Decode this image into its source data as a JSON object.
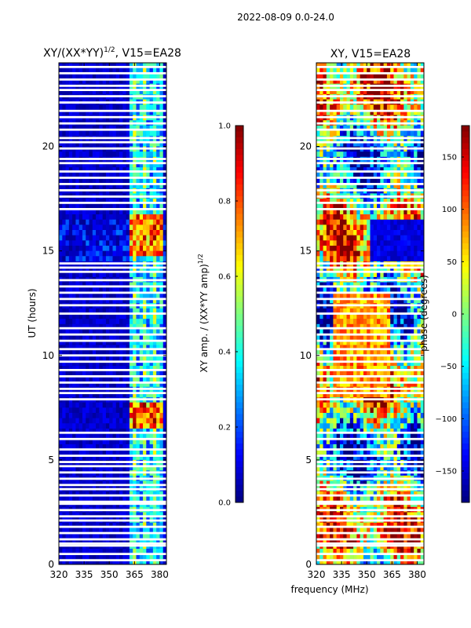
{
  "figure_title": "2022-08-09 0.0-24.0",
  "xlabel": "frequency (MHz)",
  "colors": {
    "jet": [
      "#00007f",
      "#0000ff",
      "#007fff",
      "#00ffff",
      "#7fff7f",
      "#ffff00",
      "#ff7f00",
      "#ff0000",
      "#7f0000"
    ],
    "background": "#ffffff"
  },
  "chart_data": [
    {
      "type": "heatmap",
      "title_main": "XY/(XX*YY)",
      "title_exp": "1/2",
      "title_rest": ", V15=EA28",
      "ylabel": "UT (hours)",
      "xlim": [
        320,
        384
      ],
      "ylim": [
        0,
        24
      ],
      "xticks": [
        320,
        335,
        350,
        365,
        380
      ],
      "yticks": [
        0,
        5,
        10,
        15,
        20
      ],
      "band_of_activity_MHz": [
        362,
        381
      ],
      "hot_intervals_hours": [
        [
          6.5,
          7.7
        ],
        [
          14.7,
          16.8
        ]
      ],
      "colorbar": {
        "label": "XY amp. / (XX*YY amp)",
        "label_exp": "1/2",
        "range": [
          0.0,
          1.0
        ],
        "ticks": [
          "0.0",
          "0.2",
          "0.4",
          "0.6",
          "0.8",
          "1.0"
        ],
        "tick_values": [
          0.0,
          0.2,
          0.4,
          0.6,
          0.8,
          1.0
        ]
      }
    },
    {
      "type": "heatmap",
      "title": "XY, V15=EA28",
      "xlim": [
        320,
        384
      ],
      "ylim": [
        0,
        24
      ],
      "xticks": [
        320,
        335,
        350,
        365,
        380
      ],
      "yticks": [
        0,
        5,
        10,
        15,
        20
      ],
      "colorbar": {
        "label": "phase (degrees)",
        "range": [
          -180,
          180
        ],
        "ticks": [
          "−150",
          "−100",
          "−50",
          "0",
          "50",
          "100",
          "150"
        ],
        "tick_values": [
          -150,
          -100,
          -50,
          0,
          50,
          100,
          150
        ]
      }
    }
  ],
  "flagged_hours": [
    0.2,
    0.5,
    0.9,
    1.0,
    1.2,
    1.5,
    1.8,
    2.1,
    2.3,
    2.6,
    2.9,
    3.0,
    3.3,
    3.6,
    3.8,
    4.1,
    4.4,
    4.7,
    4.9,
    5.2,
    5.5,
    6.0,
    6.3,
    7.9,
    8.2,
    8.4,
    8.7,
    9.0,
    9.3,
    9.7,
    10.0,
    10.3,
    10.7,
    11.0,
    11.3,
    12.0,
    12.4,
    12.7,
    13.0,
    13.3,
    13.6,
    14.0,
    14.2,
    14.4,
    17.0,
    17.3,
    17.6,
    17.9,
    18.2,
    18.5,
    18.8,
    19.2,
    19.4,
    19.9,
    20.2,
    20.4,
    20.8,
    21.1,
    21.4,
    21.7,
    22.1,
    22.4,
    22.7,
    22.9,
    23.2,
    23.5,
    23.8
  ]
}
